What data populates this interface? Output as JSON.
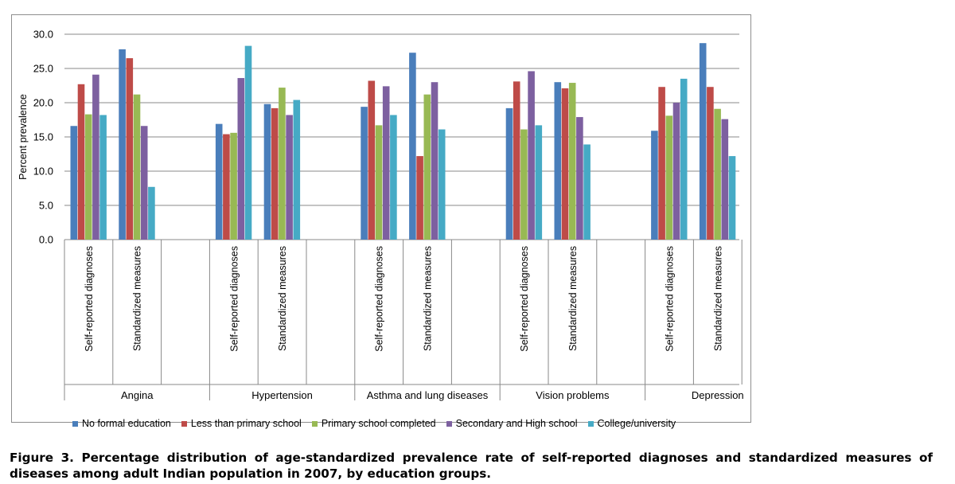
{
  "caption": "Figure 3. Percentage distribution of age-standardized prevalence rate of self-reported diagnoses and standardized measures of diseases among adult Indian population in 2007, by education groups.",
  "chart_data": {
    "type": "bar",
    "ylabel": "Percent prevalence",
    "ylim": [
      0,
      30
    ],
    "yticks": [
      "0.0",
      "5.0",
      "10.0",
      "15.0",
      "20.0",
      "25.0",
      "30.0"
    ],
    "ytick_values": [
      0,
      5,
      10,
      15,
      20,
      25,
      30
    ],
    "grid": true,
    "legend_position": "bottom",
    "groups": [
      {
        "label": "Angina",
        "subcategories": [
          "Self-reported diagnoses",
          "Standardized measures"
        ]
      },
      {
        "label": "Hypertension",
        "subcategories": [
          "Self-reported diagnoses",
          "Standardized measures"
        ]
      },
      {
        "label": "Asthma and lung diseases",
        "subcategories": [
          "Self-reported diagnoses",
          "Standardized measures"
        ]
      },
      {
        "label": "Vision problems",
        "subcategories": [
          "Self-reported diagnoses",
          "Standardized measures"
        ]
      },
      {
        "label": "Depression",
        "subcategories": [
          "Self-reported diagnoses",
          "Standardized measures"
        ]
      }
    ],
    "series": [
      {
        "name": "No formal education",
        "color": "#4a7ebb",
        "values": [
          16.6,
          27.8,
          16.9,
          19.8,
          19.4,
          27.3,
          19.2,
          23.0,
          15.9,
          28.7
        ]
      },
      {
        "name": "Less than primary school",
        "color": "#be4b48",
        "values": [
          22.7,
          26.5,
          15.4,
          19.2,
          23.2,
          12.2,
          23.1,
          22.1,
          22.3,
          22.3
        ]
      },
      {
        "name": "Primary school completed",
        "color": "#98b954",
        "values": [
          18.3,
          21.2,
          15.6,
          22.2,
          16.7,
          21.2,
          16.1,
          22.9,
          18.1,
          19.1
        ]
      },
      {
        "name": "Secondary and High school",
        "color": "#7d60a0",
        "values": [
          24.1,
          16.6,
          23.6,
          18.2,
          22.4,
          23.0,
          24.6,
          17.9,
          20.0,
          17.6
        ]
      },
      {
        "name": "College/university",
        "color": "#46aac5",
        "values": [
          18.2,
          7.7,
          28.3,
          20.4,
          18.2,
          16.1,
          16.7,
          13.9,
          23.5,
          12.2
        ]
      }
    ]
  }
}
